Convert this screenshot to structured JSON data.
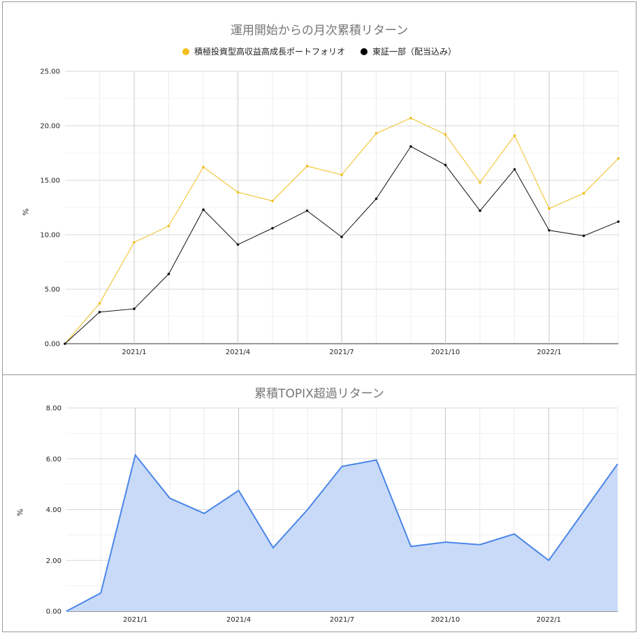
{
  "chart_data": [
    {
      "type": "line",
      "title": "運用開始からの月次累積リターン",
      "ylabel": "%",
      "xlabel": "",
      "ylim": [
        0,
        25
      ],
      "yticks": [
        "0.00",
        "5.00",
        "10.00",
        "15.00",
        "20.00",
        "25.00"
      ],
      "xticks": [
        {
          "index": 2,
          "label": "2021/1"
        },
        {
          "index": 5,
          "label": "2021/4"
        },
        {
          "index": 8,
          "label": "2021/7"
        },
        {
          "index": 11,
          "label": "2021/10"
        },
        {
          "index": 14,
          "label": "2022/1"
        }
      ],
      "grid": true,
      "legend_position": "top",
      "series": [
        {
          "name": "積極投資型高収益高成長ポートフォリオ",
          "color": "#f1be1e",
          "values": [
            0,
            3.7,
            9.3,
            10.8,
            16.2,
            13.9,
            13.1,
            16.3,
            15.5,
            19.3,
            20.7,
            19.2,
            14.8,
            19.1,
            12.4,
            13.8,
            17.0
          ]
        },
        {
          "name": "東証一部（配当込み）",
          "color": "#111111",
          "values": [
            0,
            2.9,
            3.2,
            6.4,
            12.3,
            9.1,
            10.6,
            12.2,
            9.8,
            13.3,
            18.1,
            16.4,
            12.2,
            16.0,
            10.4,
            9.9,
            11.2
          ]
        }
      ]
    },
    {
      "type": "area",
      "title": "累積TOPIX超過リターン",
      "ylabel": "%",
      "xlabel": "",
      "ylim": [
        0,
        8
      ],
      "yticks": [
        "0.00",
        "2.00",
        "4.00",
        "6.00",
        "8.00"
      ],
      "xticks": [
        {
          "index": 2,
          "label": "2021/1"
        },
        {
          "index": 5,
          "label": "2021/4"
        },
        {
          "index": 8,
          "label": "2021/7"
        },
        {
          "index": 11,
          "label": "2021/10"
        },
        {
          "index": 14,
          "label": "2022/1"
        }
      ],
      "grid": true,
      "series": [
        {
          "color": "#4a86e8",
          "fill": "#c9daf8",
          "values": [
            0,
            0.72,
            6.15,
            4.45,
            3.85,
            4.75,
            2.5,
            4.0,
            5.7,
            5.95,
            2.55,
            2.72,
            2.62,
            3.04,
            2.0,
            3.9,
            5.8
          ]
        }
      ]
    }
  ]
}
